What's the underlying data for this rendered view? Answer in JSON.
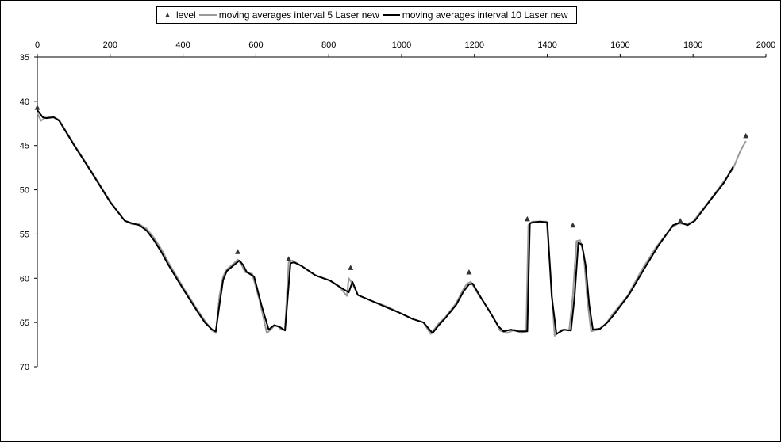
{
  "chart_data": {
    "type": "line",
    "title": "",
    "xlabel": "",
    "ylabel": "",
    "xlim": [
      0,
      2000
    ],
    "ylim": [
      35,
      70
    ],
    "y_reversed": true,
    "x_axis_position": "top",
    "grid": false,
    "legend_position": "top",
    "x_ticks": [
      0,
      200,
      400,
      600,
      800,
      1000,
      1200,
      1400,
      1600,
      1800,
      2000
    ],
    "y_ticks": [
      35,
      40,
      45,
      50,
      55,
      60,
      65,
      70
    ],
    "series": [
      {
        "name": "level",
        "style": "marker",
        "color": "#333333",
        "points": [
          [
            0,
            40.7
          ],
          [
            550,
            57.0
          ],
          [
            690,
            57.8
          ],
          [
            860,
            58.8
          ],
          [
            1185,
            59.3
          ],
          [
            1345,
            53.3
          ],
          [
            1470,
            54.0
          ],
          [
            1765,
            53.5
          ],
          [
            1945,
            43.9
          ]
        ]
      },
      {
        "name": "moving averages interval 5 Laser new",
        "style": "line",
        "color": "#999999",
        "points": [
          [
            0,
            41.3
          ],
          [
            10,
            42.2
          ],
          [
            20,
            41.9
          ],
          [
            40,
            41.7
          ],
          [
            60,
            42.1
          ],
          [
            100,
            44.8
          ],
          [
            150,
            48.0
          ],
          [
            200,
            51.3
          ],
          [
            240,
            53.5
          ],
          [
            260,
            53.9
          ],
          [
            280,
            53.9
          ],
          [
            300,
            54.4
          ],
          [
            320,
            55.4
          ],
          [
            340,
            56.7
          ],
          [
            360,
            58.2
          ],
          [
            400,
            61.0
          ],
          [
            440,
            63.6
          ],
          [
            460,
            64.8
          ],
          [
            480,
            65.9
          ],
          [
            490,
            66.2
          ],
          [
            500,
            62.0
          ],
          [
            510,
            59.8
          ],
          [
            520,
            59.0
          ],
          [
            540,
            58.3
          ],
          [
            550,
            57.9
          ],
          [
            560,
            58.4
          ],
          [
            570,
            59.3
          ],
          [
            590,
            59.5
          ],
          [
            610,
            62.5
          ],
          [
            630,
            66.2
          ],
          [
            650,
            65.4
          ],
          [
            660,
            65.4
          ],
          [
            670,
            65.8
          ],
          [
            680,
            65.8
          ],
          [
            690,
            58.2
          ],
          [
            700,
            58.0
          ],
          [
            720,
            58.5
          ],
          [
            760,
            59.6
          ],
          [
            800,
            60.2
          ],
          [
            830,
            61.0
          ],
          [
            850,
            62.0
          ],
          [
            855,
            60.0
          ],
          [
            865,
            60.6
          ],
          [
            880,
            61.9
          ],
          [
            920,
            62.6
          ],
          [
            960,
            63.2
          ],
          [
            1000,
            64.0
          ],
          [
            1030,
            64.6
          ],
          [
            1060,
            65.0
          ],
          [
            1080,
            66.3
          ],
          [
            1100,
            65.2
          ],
          [
            1120,
            64.4
          ],
          [
            1150,
            62.8
          ],
          [
            1170,
            61.2
          ],
          [
            1180,
            60.6
          ],
          [
            1190,
            60.4
          ],
          [
            1210,
            61.8
          ],
          [
            1240,
            63.6
          ],
          [
            1260,
            65.0
          ],
          [
            1270,
            65.9
          ],
          [
            1290,
            66.2
          ],
          [
            1310,
            65.8
          ],
          [
            1330,
            66.2
          ],
          [
            1342,
            66.0
          ],
          [
            1348,
            54.0
          ],
          [
            1358,
            53.6
          ],
          [
            1380,
            53.6
          ],
          [
            1398,
            53.6
          ],
          [
            1410,
            60.0
          ],
          [
            1420,
            66.5
          ],
          [
            1440,
            65.8
          ],
          [
            1460,
            65.9
          ],
          [
            1470,
            62.0
          ],
          [
            1480,
            55.8
          ],
          [
            1490,
            55.7
          ],
          [
            1500,
            57.3
          ],
          [
            1510,
            62.5
          ],
          [
            1520,
            66.0
          ],
          [
            1540,
            65.8
          ],
          [
            1560,
            65.2
          ],
          [
            1580,
            64.0
          ],
          [
            1620,
            62.0
          ],
          [
            1660,
            59.0
          ],
          [
            1700,
            56.4
          ],
          [
            1740,
            54.3
          ],
          [
            1760,
            53.8
          ],
          [
            1780,
            53.9
          ],
          [
            1800,
            53.6
          ],
          [
            1840,
            51.5
          ],
          [
            1880,
            49.3
          ],
          [
            1910,
            47.6
          ],
          [
            1930,
            45.6
          ],
          [
            1945,
            44.5
          ]
        ]
      },
      {
        "name": "moving averages interval 10 Laser new",
        "style": "line",
        "color": "#000000",
        "points": [
          [
            0,
            41.0
          ],
          [
            15,
            41.8
          ],
          [
            25,
            41.9
          ],
          [
            45,
            41.8
          ],
          [
            60,
            42.2
          ],
          [
            100,
            44.9
          ],
          [
            150,
            48.1
          ],
          [
            200,
            51.4
          ],
          [
            240,
            53.5
          ],
          [
            260,
            53.8
          ],
          [
            280,
            54.0
          ],
          [
            300,
            54.6
          ],
          [
            320,
            55.7
          ],
          [
            340,
            57.0
          ],
          [
            360,
            58.5
          ],
          [
            400,
            61.2
          ],
          [
            440,
            63.8
          ],
          [
            460,
            65.0
          ],
          [
            480,
            65.8
          ],
          [
            490,
            66.0
          ],
          [
            500,
            63.0
          ],
          [
            510,
            60.2
          ],
          [
            520,
            59.2
          ],
          [
            540,
            58.5
          ],
          [
            555,
            58.0
          ],
          [
            565,
            58.5
          ],
          [
            575,
            59.3
          ],
          [
            595,
            59.8
          ],
          [
            615,
            63.0
          ],
          [
            635,
            65.8
          ],
          [
            650,
            65.3
          ],
          [
            665,
            65.5
          ],
          [
            680,
            65.9
          ],
          [
            695,
            58.3
          ],
          [
            705,
            58.2
          ],
          [
            725,
            58.6
          ],
          [
            765,
            59.7
          ],
          [
            805,
            60.3
          ],
          [
            835,
            61.1
          ],
          [
            855,
            61.6
          ],
          [
            865,
            60.4
          ],
          [
            880,
            61.9
          ],
          [
            920,
            62.6
          ],
          [
            960,
            63.3
          ],
          [
            1000,
            64.0
          ],
          [
            1030,
            64.6
          ],
          [
            1060,
            65.0
          ],
          [
            1085,
            66.2
          ],
          [
            1100,
            65.4
          ],
          [
            1120,
            64.5
          ],
          [
            1150,
            63.0
          ],
          [
            1170,
            61.5
          ],
          [
            1185,
            60.7
          ],
          [
            1195,
            60.6
          ],
          [
            1215,
            62.0
          ],
          [
            1245,
            64.0
          ],
          [
            1265,
            65.4
          ],
          [
            1280,
            66.0
          ],
          [
            1300,
            65.8
          ],
          [
            1320,
            66.0
          ],
          [
            1345,
            66.0
          ],
          [
            1352,
            53.8
          ],
          [
            1360,
            53.7
          ],
          [
            1380,
            53.6
          ],
          [
            1400,
            53.7
          ],
          [
            1412,
            62.0
          ],
          [
            1425,
            66.3
          ],
          [
            1445,
            65.8
          ],
          [
            1465,
            65.9
          ],
          [
            1475,
            62.0
          ],
          [
            1485,
            56.0
          ],
          [
            1495,
            56.2
          ],
          [
            1505,
            58.5
          ],
          [
            1515,
            63.0
          ],
          [
            1525,
            65.8
          ],
          [
            1545,
            65.7
          ],
          [
            1565,
            65.0
          ],
          [
            1585,
            64.0
          ],
          [
            1625,
            61.8
          ],
          [
            1665,
            59.0
          ],
          [
            1705,
            56.3
          ],
          [
            1745,
            54.0
          ],
          [
            1765,
            53.7
          ],
          [
            1785,
            54.0
          ],
          [
            1805,
            53.5
          ],
          [
            1845,
            51.3
          ],
          [
            1885,
            49.2
          ],
          [
            1910,
            47.4
          ]
        ]
      }
    ]
  }
}
